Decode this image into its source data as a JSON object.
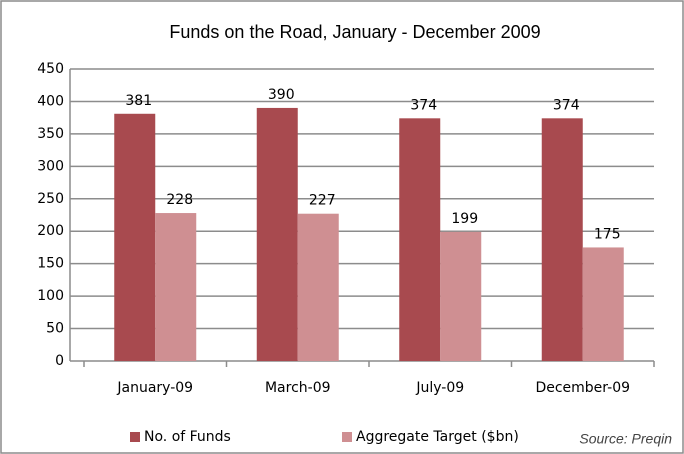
{
  "chart_data": {
    "type": "bar",
    "title": "Funds on the Road, January - December 2009",
    "categories": [
      "January-09",
      "March-09",
      "July-09",
      "December-09"
    ],
    "series": [
      {
        "name": "No. of Funds",
        "color": "#a84a4f",
        "values": [
          381,
          390,
          374,
          374
        ]
      },
      {
        "name": "Aggregate Target ($bn)",
        "color": "#cf8f92",
        "values": [
          228,
          227,
          199,
          175
        ]
      }
    ],
    "ylim": [
      0,
      450
    ],
    "yticks": [
      0,
      50,
      100,
      150,
      200,
      250,
      300,
      350,
      400,
      450
    ],
    "grid": true,
    "legend": "bottom",
    "annotations": [
      "Source: Preqin"
    ]
  }
}
